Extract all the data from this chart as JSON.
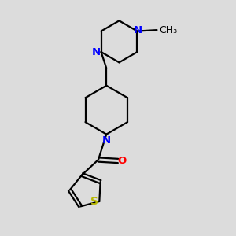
{
  "bg_color": "#dcdcdc",
  "bond_color": "#000000",
  "bond_width": 1.6,
  "N_color": "#0000ff",
  "O_color": "#ff0000",
  "S_color": "#b8b800",
  "text_color": "#000000",
  "font_size": 9.5,
  "xlim": [
    0,
    10
  ],
  "ylim": [
    0,
    10
  ]
}
